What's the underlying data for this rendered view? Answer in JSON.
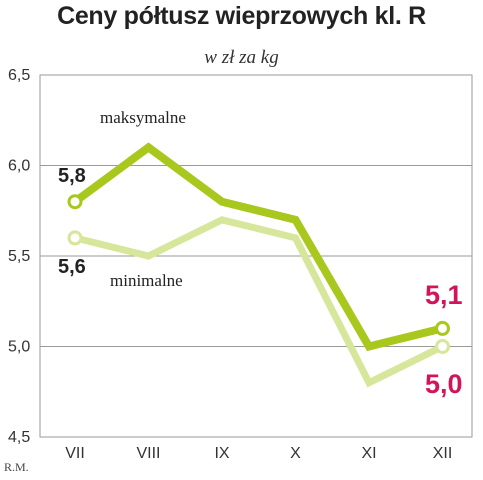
{
  "title": "Ceny półtusz wieprzowych kl. R",
  "subtitle": "w zł za kg",
  "credit": "R.M.",
  "colors": {
    "max_series": "#a8c81e",
    "min_series": "#d6e69a",
    "accent": "#d4145a",
    "grid": "#9a9a9a"
  },
  "chart_data": {
    "type": "line",
    "title": "Ceny półtusz wieprzowych kl. R",
    "subtitle": "w zł za kg",
    "xlabel": "",
    "ylabel": "",
    "categories": [
      "VII",
      "VIII",
      "IX",
      "X",
      "XI",
      "XII"
    ],
    "y_ticks": [
      "4,5",
      "5,0",
      "5,5",
      "6,0",
      "6,5"
    ],
    "ylim": [
      4.5,
      6.5
    ],
    "grid": true,
    "series": [
      {
        "name": "maksymalne",
        "values": [
          5.8,
          6.1,
          5.8,
          5.7,
          5.0,
          5.1
        ]
      },
      {
        "name": "minimalne",
        "values": [
          5.6,
          5.5,
          5.7,
          5.6,
          4.8,
          5.0
        ]
      }
    ],
    "annotations": {
      "max_first": "5,8",
      "min_first": "5,6",
      "max_last": "5,1",
      "min_last": "5,0"
    }
  }
}
